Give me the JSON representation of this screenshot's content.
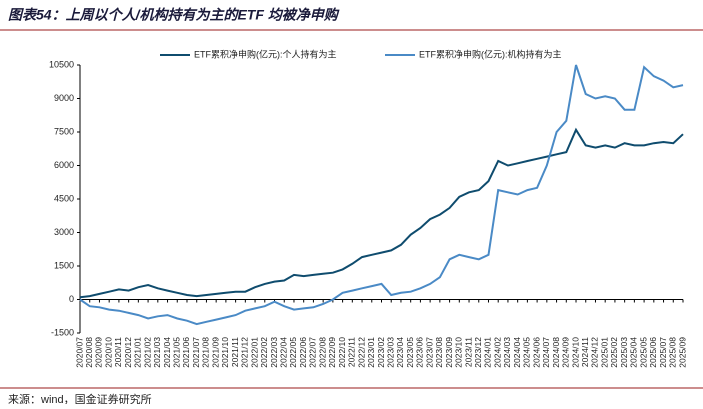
{
  "chart_data": {
    "type": "line",
    "title": "图表54：上周以个人/机构持有为主的ETF 均被净申购",
    "source": "来源：wind，国金证券研究所",
    "categories": [
      "2020/07",
      "2020/08",
      "2020/09",
      "2020/10",
      "2020/11",
      "2020/12",
      "2021/01",
      "2021/02",
      "2021/03",
      "2021/04",
      "2021/05",
      "2021/06",
      "2021/07",
      "2021/08",
      "2021/09",
      "2021/10",
      "2021/11",
      "2021/12",
      "2022/01",
      "2022/02",
      "2022/03",
      "2022/04",
      "2022/05",
      "2022/06",
      "2022/07",
      "2022/08",
      "2022/09",
      "2022/10",
      "2022/11",
      "2022/12",
      "2023/01",
      "2023/02",
      "2023/03",
      "2023/04",
      "2023/05",
      "2023/06",
      "2023/07",
      "2023/08",
      "2023/09",
      "2023/10",
      "2023/11",
      "2023/12",
      "2024/01",
      "2024/02",
      "2024/03",
      "2024/04",
      "2024/05",
      "2024/06",
      "2024/07",
      "2024/08",
      "2024/09",
      "2024/10",
      "2024/11",
      "2024/12",
      "2025/01",
      "2025/02",
      "2025/03",
      "2025/04",
      "2025/05",
      "2025/06",
      "2025/07",
      "2025/08",
      "2025/09"
    ],
    "series": [
      {
        "name": "ETF累积净申购(亿元):个人持有为主",
        "color": "#0f4c6e",
        "values": [
          100,
          150,
          250,
          350,
          450,
          400,
          550,
          650,
          500,
          400,
          300,
          200,
          150,
          200,
          250,
          300,
          350,
          350,
          550,
          700,
          800,
          850,
          1100,
          1050,
          1100,
          1150,
          1200,
          1350,
          1600,
          1900,
          2000,
          2100,
          2200,
          2450,
          2900,
          3200,
          3600,
          3800,
          4100,
          4600,
          4800,
          4900,
          5300,
          6200,
          6000,
          6100,
          6200,
          6300,
          6400,
          6500,
          6600,
          7600,
          6900,
          6800,
          6900,
          6800,
          7000,
          6900,
          6900,
          7000,
          7050,
          7000,
          7400
        ]
      },
      {
        "name": "ETF累积净申购(亿元):机构持有为主",
        "color": "#4a8ac6",
        "values": [
          0,
          -300,
          -350,
          -450,
          -500,
          -600,
          -700,
          -850,
          -750,
          -700,
          -850,
          -950,
          -1100,
          -1000,
          -900,
          -800,
          -700,
          -500,
          -400,
          -300,
          -100,
          -300,
          -450,
          -400,
          -350,
          -200,
          0,
          300,
          400,
          500,
          600,
          700,
          200,
          300,
          350,
          500,
          700,
          1000,
          1800,
          2000,
          1900,
          1800,
          2000,
          4900,
          4800,
          4700,
          4900,
          5000,
          6000,
          7500,
          8000,
          10500,
          9200,
          9000,
          9100,
          9000,
          8500,
          8500,
          10400,
          10000,
          9800,
          9500,
          9600
        ]
      }
    ],
    "ylim": [
      -1500,
      10500
    ],
    "yticks": [
      -1500,
      0,
      1500,
      3000,
      4500,
      6000,
      7500,
      9000,
      10500
    ],
    "grid": false
  }
}
